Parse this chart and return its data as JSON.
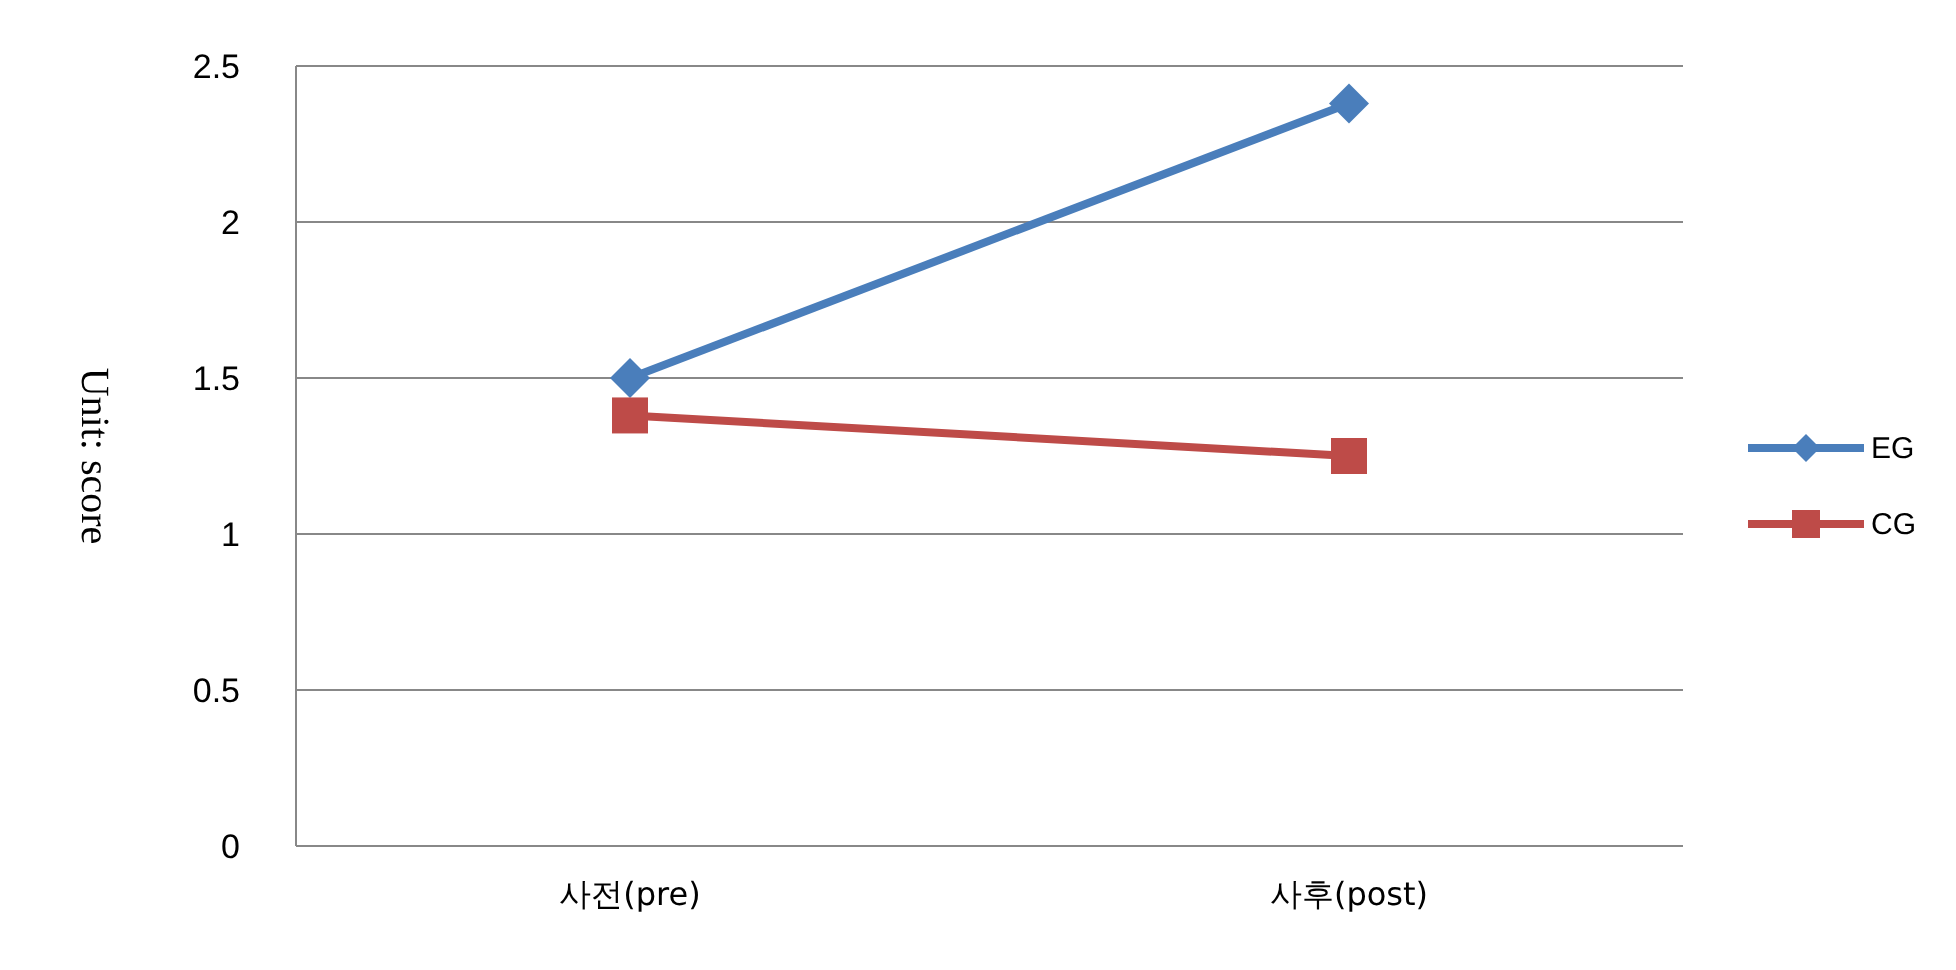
{
  "chart_data": {
    "type": "line",
    "ylabel": "Unit: score",
    "categories": [
      "사전(pre)",
      "사후(post)"
    ],
    "series": [
      {
        "name": "EG",
        "color": "#4a7ebb",
        "marker": "diamond",
        "values": [
          1.5,
          2.38
        ]
      },
      {
        "name": "CG",
        "color": "#be4b48",
        "marker": "square",
        "values": [
          1.38,
          1.25
        ]
      }
    ],
    "ylim": [
      0,
      2.5
    ],
    "yticks": [
      0,
      0.5,
      1,
      1.5,
      2,
      2.5
    ],
    "grid": "y",
    "legend": "right",
    "line_style": "solid"
  }
}
